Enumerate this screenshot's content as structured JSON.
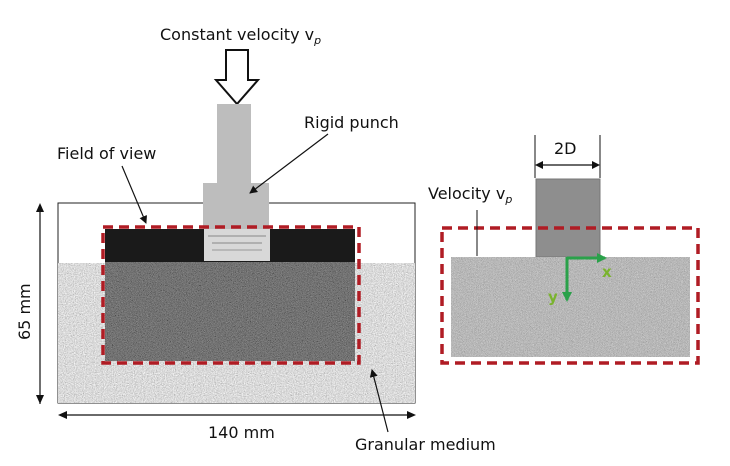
{
  "labels": {
    "constant_velocity": "Constant velocity v",
    "constant_velocity_sub": "p",
    "rigid_punch": "Rigid punch",
    "field_of_view": "Field of view",
    "height": "65 mm",
    "width": "140 mm",
    "granular_medium": "Granular medium",
    "punch_width": "2D",
    "velocity": "Velocity v",
    "velocity_sub": "p",
    "axis_x": "x",
    "axis_y": "y"
  },
  "colors": {
    "fov_dashed": "#b01c24",
    "axes_arrow": "#2aa14a",
    "axis_label": "#7ab32e",
    "punch_gray": "#b9b9b9",
    "sim_punch_gray": "#8f8f8f"
  }
}
